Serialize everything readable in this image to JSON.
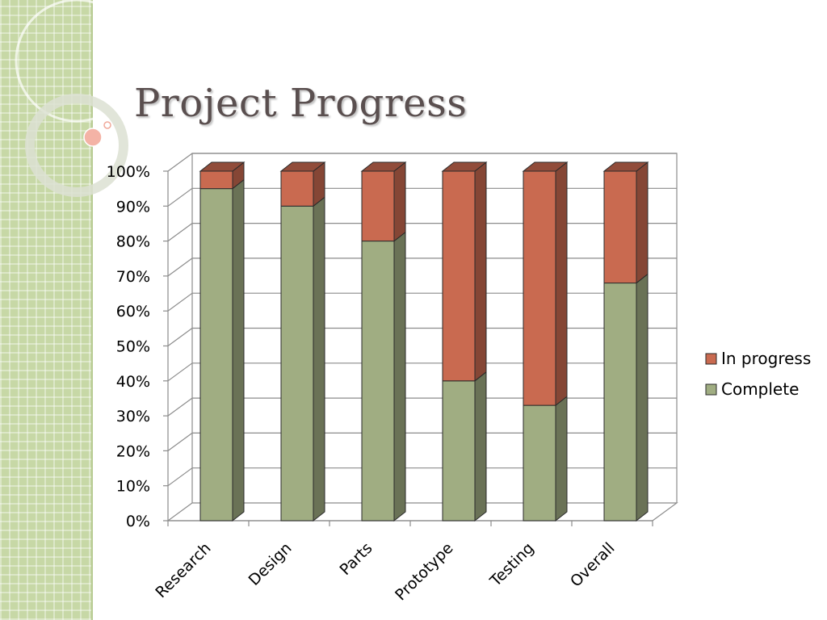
{
  "slide": {
    "title": "Project Progress"
  },
  "colors": {
    "complete": "#a0ad82",
    "in_progress": "#c96a50"
  },
  "chart_data": {
    "type": "bar",
    "stacked": true,
    "style": "3d-column-100-percent-stacked",
    "categories": [
      "Research",
      "Design",
      "Parts",
      "Prototype",
      "Testing",
      "Overall"
    ],
    "series": [
      {
        "name": "Complete",
        "values": [
          95,
          90,
          80,
          40,
          33,
          68
        ]
      },
      {
        "name": "In progress",
        "values": [
          5,
          10,
          20,
          60,
          67,
          32
        ]
      }
    ],
    "ylim": [
      0,
      100
    ],
    "y_tick_labels": [
      "0%",
      "10%",
      "20%",
      "30%",
      "40%",
      "50%",
      "60%",
      "70%",
      "80%",
      "90%",
      "100%"
    ],
    "grid": true,
    "legend_position": "right"
  }
}
